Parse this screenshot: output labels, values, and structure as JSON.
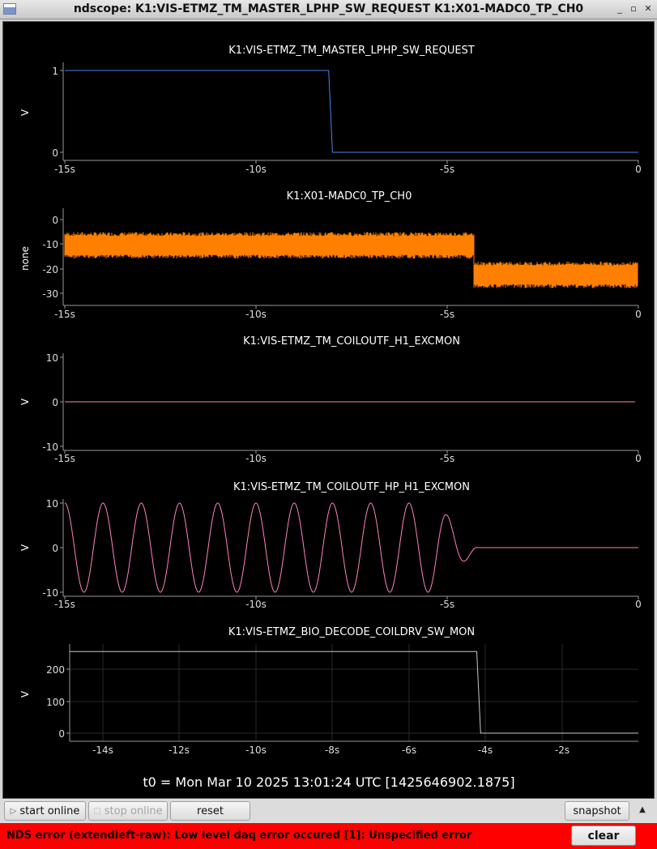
{
  "window": {
    "title": "ndscope: K1:VIS-ETMZ_TM_MASTER_LPHP_SW_REQUEST K1:X01-MADC0_TP_CH0"
  },
  "colors": {
    "trace_blue": "#4a86e8",
    "trace_orange": "#ff8000",
    "trace_pink": "#ff80c0",
    "trace_gray": "#c8c8c8",
    "error_bg": "#ff0000"
  },
  "plots": [
    {
      "title": "K1:VIS-ETMZ_TM_MASTER_LPHP_SW_REQUEST",
      "ylabel": "V",
      "yticks": [
        "1",
        "0"
      ],
      "xticks": [
        "-15s",
        "-10s",
        "-5s",
        "0"
      ]
    },
    {
      "title": "K1:X01-MADC0_TP_CH0",
      "ylabel": "none",
      "yticks": [
        "0",
        "-10",
        "-20",
        "-30"
      ],
      "xticks": [
        "-15s",
        "-10s",
        "-5s",
        "0"
      ]
    },
    {
      "title": "K1:VIS-ETMZ_TM_COILOUTF_H1_EXCMON",
      "ylabel": "V",
      "yticks": [
        "10",
        "0",
        "-10"
      ],
      "xticks": [
        "-15s",
        "-10s",
        "-5s",
        "0"
      ]
    },
    {
      "title": "K1:VIS-ETMZ_TM_COILOUTF_HP_H1_EXCMON",
      "ylabel": "V",
      "yticks": [
        "10",
        "0",
        "-10"
      ],
      "xticks": [
        "-15s",
        "-10s",
        "-5s",
        "0"
      ]
    },
    {
      "title": "K1:VIS-ETMZ_BIO_DECODE_COILDRV_SW_MON",
      "ylabel": "V",
      "yticks": [
        "200",
        "100",
        "0"
      ],
      "xticks": [
        "-14s",
        "-12s",
        "-10s",
        "-8s",
        "-6s",
        "-4s",
        "-2s"
      ]
    }
  ],
  "t0_label": "t0 = Mon Mar 10 2025 13:01:24 UTC [1425646902.1875]",
  "toolbar": {
    "start_online": "start online",
    "stop_online": "stop online",
    "reset": "reset",
    "snapshot": "snapshot"
  },
  "error": {
    "message": "NDS error (extendleft-raw): Low level daq error occured [1]: Unspecified error",
    "clear": "clear"
  },
  "chart_data": [
    {
      "type": "line",
      "title": "K1:VIS-ETMZ_TM_MASTER_LPHP_SW_REQUEST",
      "ylabel": "V",
      "xlim": [
        -15,
        0
      ],
      "ylim": [
        -0.1,
        1.1
      ],
      "series": [
        {
          "x": [
            -15,
            -8.1,
            -8.0,
            0
          ],
          "y": [
            1,
            1,
            0,
            0
          ]
        }
      ]
    },
    {
      "type": "line",
      "title": "K1:X01-MADC0_TP_CH0",
      "ylabel": "none",
      "xlim": [
        -15,
        0
      ],
      "ylim": [
        -33,
        4
      ],
      "series": [
        {
          "description_bands": [
            {
              "x": [
                -15,
                -4.3
              ],
              "y": [
                -15,
                -6
              ]
            },
            {
              "x": [
                -4.3,
                0
              ],
              "y": [
                -27,
                -18
              ]
            }
          ]
        }
      ]
    },
    {
      "type": "line",
      "title": "K1:VIS-ETMZ_TM_COILOUTF_H1_EXCMON",
      "ylabel": "V",
      "xlim": [
        -15,
        0
      ],
      "ylim": [
        -11,
        11
      ],
      "series": [
        {
          "x": [
            -15,
            0
          ],
          "y": [
            0,
            0
          ]
        }
      ]
    },
    {
      "type": "line",
      "title": "K1:VIS-ETMZ_TM_COILOUTF_HP_H1_EXCMON",
      "ylabel": "V",
      "xlim": [
        -15,
        0
      ],
      "ylim": [
        -11,
        11
      ],
      "series": [
        {
          "amplitude": 10,
          "period_s": 1.0,
          "decay_start_s": -5.3,
          "end_s": -4.2
        }
      ]
    },
    {
      "type": "line",
      "title": "K1:VIS-ETMZ_BIO_DECODE_COILDRV_SW_MON",
      "ylabel": "V",
      "xlim": [
        -14.8,
        -0.2
      ],
      "ylim": [
        -20,
        280
      ],
      "series": [
        {
          "x": [
            -14.8,
            -4.35,
            -4.25,
            -0.2
          ],
          "y": [
            255,
            255,
            0,
            0
          ]
        }
      ]
    }
  ]
}
